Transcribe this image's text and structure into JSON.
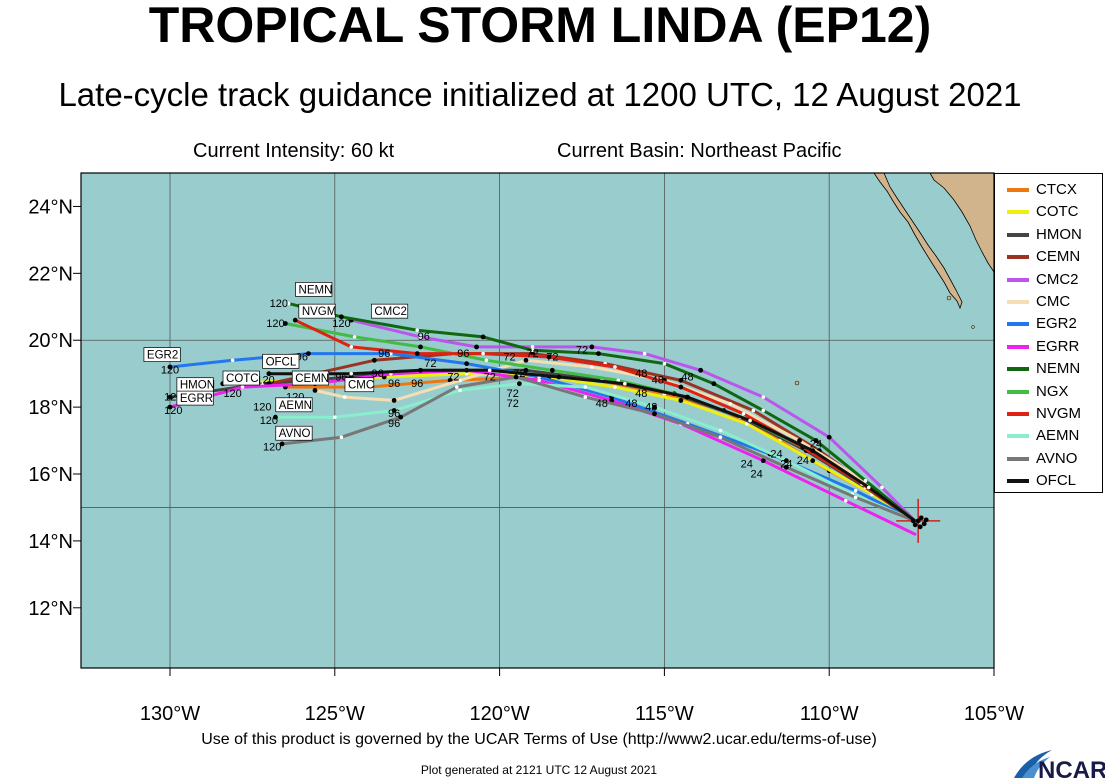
{
  "header": {
    "title": "TROPICAL STORM LINDA (EP12)",
    "subtitle": "Late-cycle track guidance initialized at 1200 UTC, 12 August 2021",
    "intensity": "Current Intensity: 60 kt",
    "basin": "Current Basin: Northeast Pacific"
  },
  "footer": {
    "terms": "Use of this product is governed by the UCAR Terms of Use (http://www2.ucar.edu/terms-of-use)",
    "generated": "Plot generated at 2121 UTC   12 August 2021",
    "logo_text": "NCAR"
  },
  "map": {
    "lon_range": [
      -132.7,
      -105.0
    ],
    "lat_range": [
      10.2,
      25.0
    ],
    "lon_ticks": [
      {
        "value": -130,
        "label": "130°W"
      },
      {
        "value": -125,
        "label": "125°W"
      },
      {
        "value": -120,
        "label": "120°W"
      },
      {
        "value": -115,
        "label": "115°W"
      },
      {
        "value": -110,
        "label": "110°W"
      },
      {
        "value": -105,
        "label": "105°W"
      }
    ],
    "lat_ticks": [
      {
        "value": 12,
        "label": "12°N"
      },
      {
        "value": 14,
        "label": "14°N"
      },
      {
        "value": 16,
        "label": "16°N"
      },
      {
        "value": 18,
        "label": "18°N"
      },
      {
        "value": 20,
        "label": "20°N"
      },
      {
        "value": 22,
        "label": "22°N"
      },
      {
        "value": 24,
        "label": "24°N"
      }
    ],
    "grid_lons": [
      -130,
      -125,
      -120,
      -115,
      -110
    ],
    "grid_lats": [
      15,
      20,
      25
    ],
    "ocean_color": "#99cccc",
    "land_color": "#d2b48c",
    "grid_color": "#555555",
    "storm_position": [
      -107.3,
      14.6
    ],
    "storm_marker_color": "#cc2222"
  },
  "models": [
    {
      "name": "CTCX",
      "color": "#ee7711",
      "tag": "CTCX",
      "track": [
        [
          -107.4,
          14.6
        ],
        [
          -108.5,
          15.3
        ],
        [
          -110.0,
          16.1
        ],
        [
          -111.5,
          17.0
        ],
        [
          -113.2,
          17.9
        ],
        [
          -115.0,
          18.4
        ],
        [
          -117.0,
          18.8
        ],
        [
          -119.0,
          18.9
        ],
        [
          -121.5,
          18.8
        ],
        [
          -124.0,
          18.6
        ],
        [
          -126.5,
          18.6
        ]
      ],
      "label_at": null
    },
    {
      "name": "COTC",
      "color": "#eeee11",
      "tag": "COTC",
      "track": [
        [
          -107.4,
          14.6
        ],
        [
          -108.7,
          15.4
        ],
        [
          -110.5,
          16.4
        ],
        [
          -112.5,
          17.5
        ],
        [
          -114.5,
          18.2
        ],
        [
          -116.5,
          18.6
        ],
        [
          -118.5,
          18.9
        ],
        [
          -121.0,
          19.0
        ],
        [
          -123.5,
          18.9
        ],
        [
          -126.0,
          18.8
        ],
        [
          -128.4,
          18.7
        ]
      ],
      "label_at": [
        -128.3,
        18.75
      ]
    },
    {
      "name": "HMON",
      "color": "#444444",
      "tag": "HMON",
      "track": [
        [
          -107.4,
          14.6
        ],
        [
          -108.9,
          15.6
        ],
        [
          -110.7,
          16.7
        ],
        [
          -112.7,
          17.7
        ],
        [
          -114.7,
          18.4
        ],
        [
          -116.9,
          18.8
        ],
        [
          -119.2,
          19.1
        ],
        [
          -121.8,
          19.1
        ],
        [
          -124.5,
          18.9
        ],
        [
          -127.2,
          18.7
        ],
        [
          -130.0,
          18.3
        ]
      ],
      "label_at": [
        -129.7,
        18.55
      ]
    },
    {
      "name": "CEMN",
      "color": "#993322",
      "tag": "CEMN",
      "track": [
        [
          -107.4,
          14.6
        ],
        [
          -108.6,
          15.5
        ],
        [
          -110.3,
          16.7
        ],
        [
          -112.3,
          17.9
        ],
        [
          -114.5,
          18.8
        ],
        [
          -116.8,
          19.3
        ],
        [
          -119.0,
          19.6
        ],
        [
          -121.4,
          19.6
        ],
        [
          -123.8,
          19.4
        ],
        [
          -125.6,
          19.0
        ],
        [
          -127.0,
          18.7
        ]
      ],
      "label_at": [
        -126.2,
        18.75
      ]
    },
    {
      "name": "CMC2",
      "color": "#bb55ee",
      "tag": "CMC2",
      "track": [
        [
          -107.4,
          14.6
        ],
        [
          -108.4,
          15.6
        ],
        [
          -110.0,
          17.1
        ],
        [
          -112.0,
          18.3
        ],
        [
          -113.9,
          19.1
        ],
        [
          -115.6,
          19.6
        ],
        [
          -117.2,
          19.8
        ],
        [
          -119.0,
          19.8
        ],
        [
          -120.7,
          19.8
        ],
        [
          -122.4,
          20.1
        ],
        [
          -124.5,
          20.6
        ]
      ],
      "label_at": [
        -123.8,
        20.75
      ]
    },
    {
      "name": "CMC",
      "color": "#f5deb3",
      "tag": "CMC",
      "track": [
        [
          -107.4,
          14.6
        ],
        [
          -108.8,
          15.7
        ],
        [
          -110.9,
          17.0
        ],
        [
          -113.0,
          18.1
        ],
        [
          -115.0,
          18.8
        ],
        [
          -117.2,
          19.2
        ],
        [
          -119.2,
          19.4
        ],
        [
          -121.2,
          18.8
        ],
        [
          -123.2,
          18.2
        ],
        [
          -124.7,
          18.3
        ],
        [
          -125.6,
          18.5
        ]
      ],
      "label_at": [
        -124.6,
        18.55
      ]
    },
    {
      "name": "EGR2",
      "color": "#2277ee",
      "tag": "EGR2",
      "track": [
        [
          -107.4,
          14.6
        ],
        [
          -109.2,
          15.5
        ],
        [
          -111.8,
          16.6
        ],
        [
          -114.3,
          17.5
        ],
        [
          -116.6,
          18.3
        ],
        [
          -118.8,
          18.9
        ],
        [
          -121.0,
          19.3
        ],
        [
          -123.3,
          19.6
        ],
        [
          -125.8,
          19.6
        ],
        [
          -128.1,
          19.4
        ],
        [
          -130.0,
          19.2
        ]
      ],
      "label_at": [
        -130.7,
        19.45
      ]
    },
    {
      "name": "EGRR",
      "color": "#ee22ee",
      "tag": "EGRR",
      "track": [
        [
          -107.4,
          14.2
        ],
        [
          -109.5,
          15.2
        ],
        [
          -112.0,
          16.4
        ],
        [
          -114.5,
          17.5
        ],
        [
          -116.6,
          18.2
        ],
        [
          -118.8,
          18.8
        ],
        [
          -121.0,
          19.1
        ],
        [
          -123.3,
          19.0
        ],
        [
          -125.6,
          18.7
        ],
        [
          -127.8,
          18.6
        ],
        [
          -130.0,
          18.0
        ]
      ],
      "label_at": [
        -129.7,
        18.15
      ]
    },
    {
      "name": "NEMN",
      "color": "#116611",
      "tag": "NEMN",
      "track": [
        [
          -107.4,
          14.6
        ],
        [
          -108.9,
          15.8
        ],
        [
          -110.4,
          17.0
        ],
        [
          -112.0,
          17.9
        ],
        [
          -113.5,
          18.7
        ],
        [
          -115.0,
          19.3
        ],
        [
          -117.0,
          19.6
        ],
        [
          -119.0,
          19.7
        ],
        [
          -120.5,
          20.1
        ],
        [
          -122.5,
          20.3
        ],
        [
          -124.8,
          20.7
        ],
        [
          -126.4,
          21.1
        ]
      ],
      "label_at": [
        -126.1,
        21.4
      ]
    },
    {
      "name": "NGX",
      "color": "#44bb44",
      "tag": "NGX",
      "track": [
        [
          -107.4,
          14.6
        ],
        [
          -108.8,
          15.6
        ],
        [
          -110.6,
          16.7
        ],
        [
          -112.4,
          17.6
        ],
        [
          -114.3,
          18.3
        ],
        [
          -116.4,
          18.8
        ],
        [
          -118.4,
          19.1
        ],
        [
          -120.4,
          19.4
        ],
        [
          -122.4,
          19.8
        ],
        [
          -124.4,
          20.1
        ],
        [
          -126.5,
          20.5
        ]
      ],
      "label_at": null
    },
    {
      "name": "NVGM",
      "color": "#dd2211",
      "tag": "NVGM",
      "track": [
        [
          -107.4,
          14.6
        ],
        [
          -109.0,
          15.7
        ],
        [
          -110.8,
          16.8
        ],
        [
          -112.6,
          17.8
        ],
        [
          -114.5,
          18.6
        ],
        [
          -116.5,
          19.2
        ],
        [
          -118.5,
          19.5
        ],
        [
          -120.5,
          19.6
        ],
        [
          -122.5,
          19.6
        ],
        [
          -124.5,
          19.8
        ],
        [
          -126.2,
          20.6
        ]
      ],
      "label_at": [
        -126.0,
        20.75
      ]
    },
    {
      "name": "AEMN",
      "color": "#88eecc",
      "tag": "AEMN",
      "track": [
        [
          -107.4,
          14.6
        ],
        [
          -109.3,
          15.4
        ],
        [
          -111.3,
          16.4
        ],
        [
          -113.3,
          17.3
        ],
        [
          -115.3,
          18.0
        ],
        [
          -117.4,
          18.6
        ],
        [
          -119.4,
          18.7
        ],
        [
          -121.2,
          18.5
        ],
        [
          -123.2,
          17.9
        ],
        [
          -125.0,
          17.7
        ],
        [
          -126.8,
          17.7
        ]
      ],
      "label_at": [
        -126.7,
        17.95
      ]
    },
    {
      "name": "AVNO",
      "color": "#777777",
      "tag": "AVNO",
      "track": [
        [
          -107.4,
          14.6
        ],
        [
          -109.2,
          15.3
        ],
        [
          -111.3,
          16.2
        ],
        [
          -113.3,
          17.1
        ],
        [
          -115.3,
          17.8
        ],
        [
          -117.4,
          18.3
        ],
        [
          -119.5,
          18.9
        ],
        [
          -121.3,
          18.6
        ],
        [
          -123.0,
          17.7
        ],
        [
          -124.8,
          17.1
        ],
        [
          -126.6,
          16.9
        ]
      ],
      "label_at": [
        -126.7,
        17.1
      ]
    },
    {
      "name": "OFCL",
      "color": "#111111",
      "tag": "OFCL",
      "track": [
        [
          -107.4,
          14.6
        ],
        [
          -108.8,
          15.6
        ],
        [
          -110.5,
          16.7
        ],
        [
          -112.4,
          17.6
        ],
        [
          -114.3,
          18.3
        ],
        [
          -116.2,
          18.7
        ],
        [
          -118.2,
          18.9
        ],
        [
          -120.3,
          19.1
        ],
        [
          -122.4,
          19.1
        ],
        [
          -124.5,
          19.0
        ],
        [
          -127.0,
          19.0
        ]
      ],
      "label_at": [
        -127.1,
        19.25
      ]
    }
  ],
  "hour_labels": [
    {
      "text": "120",
      "lon": -130.0,
      "lat": 19.0
    },
    {
      "text": "120",
      "lon": -129.9,
      "lat": 18.2
    },
    {
      "text": "120",
      "lon": -129.9,
      "lat": 17.8
    },
    {
      "text": "120",
      "lon": -128.1,
      "lat": 18.3
    },
    {
      "text": "120",
      "lon": -127.1,
      "lat": 18.7
    },
    {
      "text": "120",
      "lon": -127.2,
      "lat": 17.9
    },
    {
      "text": "120",
      "lon": -127.0,
      "lat": 17.5
    },
    {
      "text": "120",
      "lon": -126.2,
      "lat": 18.2
    },
    {
      "text": "120",
      "lon": -126.9,
      "lat": 16.7
    },
    {
      "text": "120",
      "lon": -126.7,
      "lat": 21.0
    },
    {
      "text": "120",
      "lon": -126.8,
      "lat": 20.4
    },
    {
      "text": "120",
      "lon": -124.8,
      "lat": 20.4
    },
    {
      "text": "96",
      "lon": -126.0,
      "lat": 19.4
    },
    {
      "text": "96",
      "lon": -125.6,
      "lat": 18.7
    },
    {
      "text": "96",
      "lon": -124.8,
      "lat": 18.8
    },
    {
      "text": "96",
      "lon": -123.7,
      "lat": 18.9
    },
    {
      "text": "96",
      "lon": -123.5,
      "lat": 19.5
    },
    {
      "text": "96",
      "lon": -123.2,
      "lat": 18.6
    },
    {
      "text": "96",
      "lon": -122.5,
      "lat": 18.6
    },
    {
      "text": "96",
      "lon": -123.2,
      "lat": 17.7
    },
    {
      "text": "96",
      "lon": -123.2,
      "lat": 17.4
    },
    {
      "text": "96",
      "lon": -121.1,
      "lat": 19.5
    },
    {
      "text": "96",
      "lon": -122.3,
      "lat": 20.0
    },
    {
      "text": "72",
      "lon": -122.1,
      "lat": 19.2
    },
    {
      "text": "72",
      "lon": -121.4,
      "lat": 18.8
    },
    {
      "text": "72",
      "lon": -120.3,
      "lat": 18.8
    },
    {
      "text": "72",
      "lon": -119.7,
      "lat": 19.4
    },
    {
      "text": "72",
      "lon": -119.4,
      "lat": 18.9
    },
    {
      "text": "72",
      "lon": -119.6,
      "lat": 18.3
    },
    {
      "text": "72",
      "lon": -119.6,
      "lat": 18.0
    },
    {
      "text": "72",
      "lon": -119.0,
      "lat": 19.5
    },
    {
      "text": "72",
      "lon": -118.4,
      "lat": 19.4
    },
    {
      "text": "72",
      "lon": -117.5,
      "lat": 19.6
    },
    {
      "text": "48",
      "lon": -116.9,
      "lat": 18.0
    },
    {
      "text": "48",
      "lon": -116.0,
      "lat": 18.0
    },
    {
      "text": "48",
      "lon": -115.4,
      "lat": 17.9
    },
    {
      "text": "48",
      "lon": -115.7,
      "lat": 18.3
    },
    {
      "text": "48",
      "lon": -115.7,
      "lat": 18.9
    },
    {
      "text": "48",
      "lon": -115.2,
      "lat": 18.7
    },
    {
      "text": "48",
      "lon": -114.3,
      "lat": 18.8
    },
    {
      "text": "24",
      "lon": -112.5,
      "lat": 16.2
    },
    {
      "text": "24",
      "lon": -112.2,
      "lat": 15.9
    },
    {
      "text": "24",
      "lon": -111.6,
      "lat": 16.5
    },
    {
      "text": "24",
      "lon": -111.3,
      "lat": 16.2
    },
    {
      "text": "24",
      "lon": -110.8,
      "lat": 16.3
    },
    {
      "text": "24",
      "lon": -110.4,
      "lat": 16.8
    }
  ]
}
